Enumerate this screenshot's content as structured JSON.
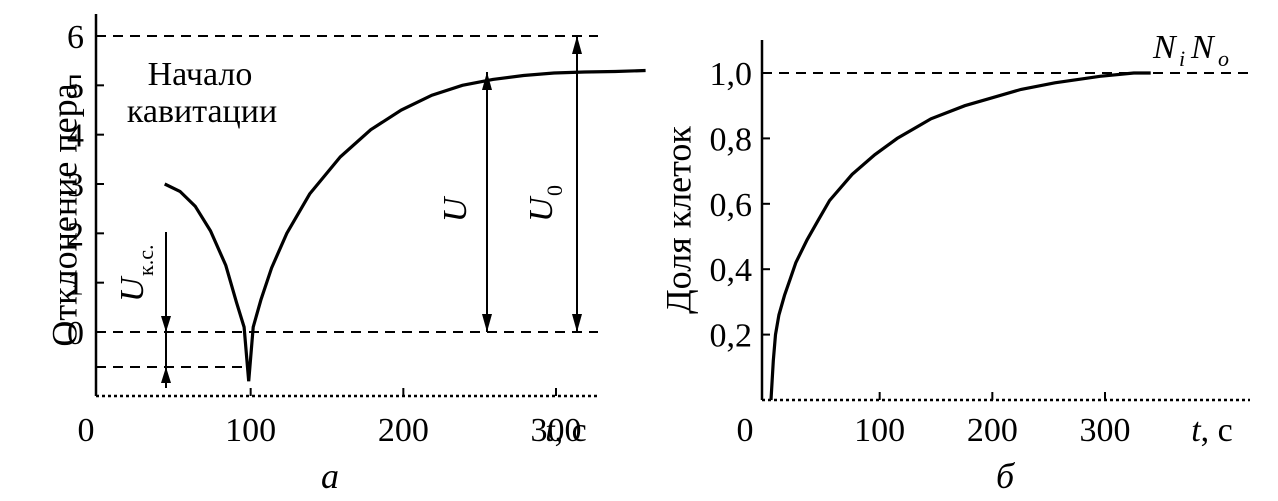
{
  "chart_data": [
    {
      "type": "line",
      "panel_label": "а",
      "ylabel": "Отклонение пера",
      "xlabel_var": "t",
      "xlabel_unit": ", с",
      "xlim": [
        0,
        345
      ],
      "ylim": [
        -1.9,
        6.1
      ],
      "xticks": [
        0,
        100,
        200,
        300
      ],
      "yticks": [
        6,
        5,
        4,
        3,
        2,
        1,
        0
      ],
      "annotation": [
        "Начало",
        "кавитации"
      ],
      "labels": {
        "Ukc": "U",
        "Ukc_sub": "к.с.",
        "U": "U",
        "U0": "U",
        "U0_sub": "0"
      },
      "reference_lines": {
        "top": 6.0,
        "zero": 0.0,
        "min": -1.0
      },
      "series": [
        {
          "x": [
            45,
            55,
            65,
            75,
            85,
            92,
            97,
            100,
            103,
            108,
            115,
            125,
            140,
            160,
            180,
            200,
            220,
            240,
            260,
            280,
            300,
            320,
            340,
            360
          ],
          "y": [
            3.0,
            2.85,
            2.55,
            2.05,
            1.35,
            0.6,
            0.1,
            -1.0,
            0.1,
            0.65,
            1.3,
            2.0,
            2.8,
            3.55,
            4.1,
            4.5,
            4.8,
            5.0,
            5.12,
            5.2,
            5.25,
            5.27,
            5.28,
            5.3
          ]
        }
      ]
    },
    {
      "type": "line",
      "panel_label": "б",
      "ylabel": "Доля клеток",
      "xlabel_var": "t",
      "xlabel_unit": ", с",
      "xlim": [
        0,
        355
      ],
      "ylim": [
        0,
        1.1
      ],
      "xticks": [
        0,
        100,
        200,
        300
      ],
      "yticks": [
        "0,2",
        "0,4",
        "0,6",
        "0,8",
        "1,0"
      ],
      "ratio_label": {
        "a": "N",
        "a_sub": "i",
        "b": "N",
        "b_sub": "o"
      },
      "reference_lines": {
        "top": 1.0
      },
      "series": [
        {
          "x": [
            8,
            10,
            12,
            15,
            20,
            25,
            30,
            40,
            50,
            60,
            80,
            100,
            120,
            150,
            180,
            200,
            230,
            260,
            300,
            330,
            345
          ],
          "y": [
            0.0,
            0.12,
            0.2,
            0.26,
            0.32,
            0.37,
            0.42,
            0.49,
            0.55,
            0.61,
            0.69,
            0.75,
            0.8,
            0.86,
            0.9,
            0.92,
            0.95,
            0.97,
            0.99,
            1.0,
            1.0
          ]
        }
      ]
    }
  ]
}
